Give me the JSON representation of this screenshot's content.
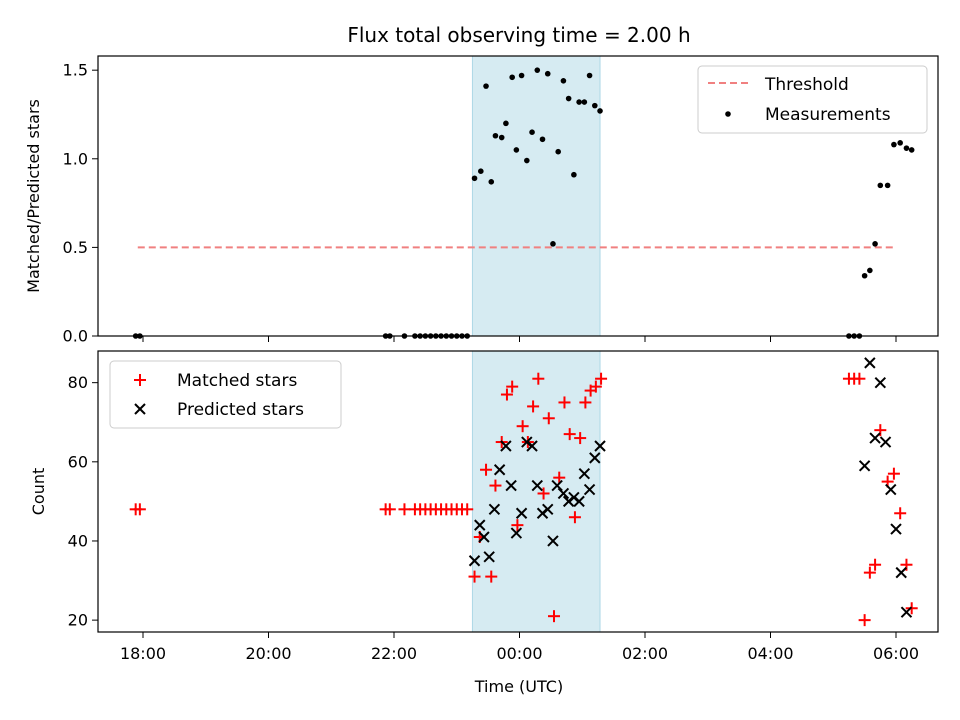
{
  "title": "Flux total observing time = 2.00 h",
  "chart_data": [
    {
      "type": "scatter",
      "ylabel": "Matched/Predicted stars",
      "ylim": [
        0,
        1.58
      ],
      "y_ticks": [
        "0.0",
        "0.5",
        "1.0",
        "1.5"
      ],
      "y_tick_values": [
        0,
        0.5,
        1.0,
        1.5
      ],
      "shaded_interval": [
        "23:15",
        "01:17"
      ],
      "legend": {
        "placement": "top-right",
        "threshold_label": "Threshold",
        "measurements_label": "Measurements"
      },
      "threshold": {
        "name": "Threshold",
        "value": 0.5,
        "x_range": [
          "17:55",
          "05:59"
        ],
        "color": "#f08080"
      },
      "series": [
        {
          "name": "Measurements",
          "color": "#000000",
          "points": [
            [
              "17:53",
              0
            ],
            [
              "17:57",
              0
            ],
            [
              "21:52",
              0
            ],
            [
              "21:56",
              0
            ],
            [
              "22:10",
              0
            ],
            [
              "22:20",
              0
            ],
            [
              "22:25",
              0
            ],
            [
              "22:30",
              0
            ],
            [
              "22:35",
              0
            ],
            [
              "22:40",
              0
            ],
            [
              "22:45",
              0
            ],
            [
              "22:50",
              0
            ],
            [
              "22:55",
              0
            ],
            [
              "23:00",
              0
            ],
            [
              "23:05",
              0
            ],
            [
              "23:10",
              0
            ],
            [
              "23:17",
              0.89
            ],
            [
              "23:23",
              0.93
            ],
            [
              "23:28",
              1.41
            ],
            [
              "23:33",
              0.87
            ],
            [
              "23:37",
              1.13
            ],
            [
              "23:43",
              1.12
            ],
            [
              "23:47",
              1.2
            ],
            [
              "23:53",
              1.46
            ],
            [
              "23:57",
              1.05
            ],
            [
              "00:02",
              1.47
            ],
            [
              "00:07",
              0.99
            ],
            [
              "00:12",
              1.15
            ],
            [
              "00:17",
              1.5
            ],
            [
              "00:22",
              1.11
            ],
            [
              "00:27",
              1.48
            ],
            [
              "00:32",
              0.52
            ],
            [
              "00:37",
              1.04
            ],
            [
              "00:42",
              1.44
            ],
            [
              "00:47",
              1.34
            ],
            [
              "00:52",
              0.91
            ],
            [
              "00:57",
              1.32
            ],
            [
              "01:02",
              1.32
            ],
            [
              "01:07",
              1.47
            ],
            [
              "01:12",
              1.3
            ],
            [
              "01:17",
              1.27
            ],
            [
              "05:15",
              0
            ],
            [
              "05:20",
              0
            ],
            [
              "05:25",
              0
            ],
            [
              "05:30",
              0.34
            ],
            [
              "05:35",
              0.37
            ],
            [
              "05:40",
              0.52
            ],
            [
              "05:45",
              0.85
            ],
            [
              "05:52",
              0.85
            ],
            [
              "05:58",
              1.08
            ],
            [
              "06:04",
              1.09
            ],
            [
              "06:10",
              1.06
            ],
            [
              "06:15",
              1.05
            ]
          ]
        }
      ]
    },
    {
      "type": "scatter",
      "xlabel": "Time (UTC)",
      "ylabel": "Count",
      "ylim": [
        17,
        88
      ],
      "y_ticks": [
        "20",
        "40",
        "60",
        "80"
      ],
      "y_tick_values": [
        20,
        40,
        60,
        80
      ],
      "x_ticks": [
        "18:00",
        "20:00",
        "22:00",
        "00:00",
        "02:00",
        "04:00",
        "06:00"
      ],
      "shaded_interval": [
        "23:15",
        "01:17"
      ],
      "legend": {
        "placement": "top-left",
        "matched_label": "Matched stars",
        "predicted_label": "Predicted stars"
      },
      "series": [
        {
          "name": "Matched stars",
          "marker": "+",
          "color": "#ff0000",
          "points": [
            [
              "17:53",
              48
            ],
            [
              "17:57",
              48
            ],
            [
              "21:52",
              48
            ],
            [
              "21:56",
              48
            ],
            [
              "22:10",
              48
            ],
            [
              "22:20",
              48
            ],
            [
              "22:25",
              48
            ],
            [
              "22:30",
              48
            ],
            [
              "22:35",
              48
            ],
            [
              "22:40",
              48
            ],
            [
              "22:45",
              48
            ],
            [
              "22:50",
              48
            ],
            [
              "22:55",
              48
            ],
            [
              "23:00",
              48
            ],
            [
              "23:05",
              48
            ],
            [
              "23:10",
              48
            ],
            [
              "23:17",
              31
            ],
            [
              "23:22",
              41
            ],
            [
              "23:28",
              58
            ],
            [
              "23:33",
              31
            ],
            [
              "23:37",
              54
            ],
            [
              "23:43",
              65
            ],
            [
              "23:48",
              77
            ],
            [
              "23:53",
              79
            ],
            [
              "23:58",
              44
            ],
            [
              "00:03",
              69
            ],
            [
              "00:08",
              65
            ],
            [
              "00:13",
              74
            ],
            [
              "00:18",
              81
            ],
            [
              "00:23",
              52
            ],
            [
              "00:28",
              71
            ],
            [
              "00:33",
              21
            ],
            [
              "00:38",
              56
            ],
            [
              "00:43",
              75
            ],
            [
              "00:48",
              67
            ],
            [
              "00:53",
              46
            ],
            [
              "00:58",
              66
            ],
            [
              "01:03",
              75
            ],
            [
              "01:08",
              78
            ],
            [
              "01:13",
              79
            ],
            [
              "01:18",
              81
            ],
            [
              "05:15",
              81
            ],
            [
              "05:20",
              81
            ],
            [
              "05:25",
              81
            ],
            [
              "05:30",
              20
            ],
            [
              "05:35",
              32
            ],
            [
              "05:40",
              34
            ],
            [
              "05:45",
              68
            ],
            [
              "05:52",
              55
            ],
            [
              "05:58",
              57
            ],
            [
              "06:04",
              47
            ],
            [
              "06:10",
              34
            ],
            [
              "06:15",
              23
            ]
          ]
        },
        {
          "name": "Predicted stars",
          "marker": "x",
          "color": "#000000",
          "points": [
            [
              "23:17",
              35
            ],
            [
              "23:22",
              44
            ],
            [
              "23:26",
              41
            ],
            [
              "23:31",
              36
            ],
            [
              "23:36",
              48
            ],
            [
              "23:41",
              58
            ],
            [
              "23:47",
              64
            ],
            [
              "23:52",
              54
            ],
            [
              "23:57",
              42
            ],
            [
              "00:02",
              47
            ],
            [
              "00:07",
              65
            ],
            [
              "00:12",
              64
            ],
            [
              "00:17",
              54
            ],
            [
              "00:22",
              47
            ],
            [
              "00:27",
              48
            ],
            [
              "00:32",
              40
            ],
            [
              "00:36",
              54
            ],
            [
              "00:42",
              52
            ],
            [
              "00:47",
              50
            ],
            [
              "00:52",
              51
            ],
            [
              "00:57",
              50
            ],
            [
              "01:02",
              57
            ],
            [
              "01:07",
              53
            ],
            [
              "01:12",
              61
            ],
            [
              "01:17",
              64
            ],
            [
              "05:30",
              59
            ],
            [
              "05:35",
              85
            ],
            [
              "05:40",
              66
            ],
            [
              "05:45",
              80
            ],
            [
              "05:50",
              65
            ],
            [
              "05:55",
              53
            ],
            [
              "06:00",
              43
            ],
            [
              "06:05",
              32
            ],
            [
              "06:10",
              22
            ]
          ]
        }
      ]
    }
  ]
}
